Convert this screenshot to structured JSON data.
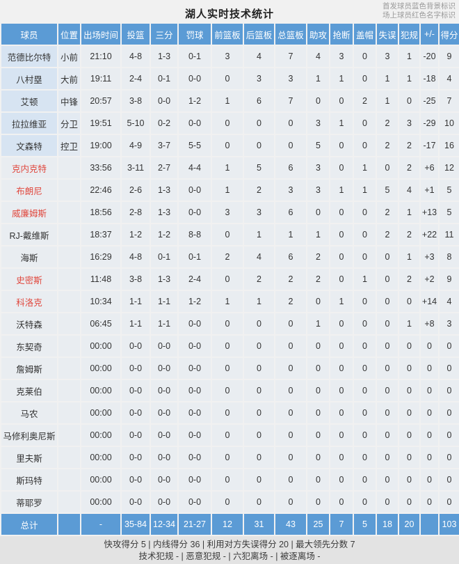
{
  "title": "湖人实时技术统计",
  "legend": {
    "line1": "首发球员蓝色背景标识",
    "line2": "场上球员红色名字标识"
  },
  "table": {
    "columns": [
      "球员",
      "位置",
      "出场时间",
      "投篮",
      "三分",
      "罚球",
      "前篮板",
      "后篮板",
      "总篮板",
      "助攻",
      "抢断",
      "盖帽",
      "失误",
      "犯规",
      "+/-",
      "得分"
    ],
    "rows": [
      {
        "name": "范德比尔特",
        "starter": true,
        "oncourt": false,
        "cells": [
          "小前",
          "21:10",
          "4-8",
          "1-3",
          "0-1",
          "3",
          "4",
          "7",
          "4",
          "3",
          "0",
          "3",
          "1",
          "-20",
          "9"
        ]
      },
      {
        "name": "八村塁",
        "starter": true,
        "oncourt": false,
        "cells": [
          "大前",
          "19:11",
          "2-4",
          "0-1",
          "0-0",
          "0",
          "3",
          "3",
          "1",
          "1",
          "0",
          "1",
          "1",
          "-18",
          "4"
        ]
      },
      {
        "name": "艾顿",
        "starter": true,
        "oncourt": false,
        "cells": [
          "中锋",
          "20:57",
          "3-8",
          "0-0",
          "1-2",
          "1",
          "6",
          "7",
          "0",
          "0",
          "2",
          "1",
          "0",
          "-25",
          "7"
        ]
      },
      {
        "name": "拉拉维亚",
        "starter": true,
        "oncourt": false,
        "cells": [
          "分卫",
          "19:51",
          "5-10",
          "0-2",
          "0-0",
          "0",
          "0",
          "0",
          "3",
          "1",
          "0",
          "2",
          "3",
          "-29",
          "10"
        ]
      },
      {
        "name": "文森特",
        "starter": true,
        "oncourt": false,
        "cells": [
          "控卫",
          "19:00",
          "4-9",
          "3-7",
          "5-5",
          "0",
          "0",
          "0",
          "5",
          "0",
          "0",
          "2",
          "2",
          "-17",
          "16"
        ]
      },
      {
        "name": "克内克特",
        "starter": false,
        "oncourt": true,
        "cells": [
          "",
          "33:56",
          "3-11",
          "2-7",
          "4-4",
          "1",
          "5",
          "6",
          "3",
          "0",
          "1",
          "0",
          "2",
          "+6",
          "12"
        ]
      },
      {
        "name": "布朗尼",
        "starter": false,
        "oncourt": true,
        "cells": [
          "",
          "22:46",
          "2-6",
          "1-3",
          "0-0",
          "1",
          "2",
          "3",
          "3",
          "1",
          "1",
          "5",
          "4",
          "+1",
          "5"
        ]
      },
      {
        "name": "威廉姆斯",
        "starter": false,
        "oncourt": true,
        "cells": [
          "",
          "18:56",
          "2-8",
          "1-3",
          "0-0",
          "3",
          "3",
          "6",
          "0",
          "0",
          "0",
          "2",
          "1",
          "+13",
          "5"
        ]
      },
      {
        "name": "RJ-戴维斯",
        "starter": false,
        "oncourt": false,
        "cells": [
          "",
          "18:37",
          "1-2",
          "1-2",
          "8-8",
          "0",
          "1",
          "1",
          "1",
          "0",
          "0",
          "2",
          "2",
          "+22",
          "11"
        ]
      },
      {
        "name": "海斯",
        "starter": false,
        "oncourt": false,
        "cells": [
          "",
          "16:29",
          "4-8",
          "0-1",
          "0-1",
          "2",
          "4",
          "6",
          "2",
          "0",
          "0",
          "0",
          "1",
          "+3",
          "8"
        ]
      },
      {
        "name": "史密斯",
        "starter": false,
        "oncourt": true,
        "cells": [
          "",
          "11:48",
          "3-8",
          "1-3",
          "2-4",
          "0",
          "2",
          "2",
          "2",
          "0",
          "1",
          "0",
          "2",
          "+2",
          "9"
        ]
      },
      {
        "name": "科洛克",
        "starter": false,
        "oncourt": true,
        "cells": [
          "",
          "10:34",
          "1-1",
          "1-1",
          "1-2",
          "1",
          "1",
          "2",
          "0",
          "1",
          "0",
          "0",
          "0",
          "+14",
          "4"
        ]
      },
      {
        "name": "沃特森",
        "starter": false,
        "oncourt": false,
        "cells": [
          "",
          "06:45",
          "1-1",
          "1-1",
          "0-0",
          "0",
          "0",
          "0",
          "1",
          "0",
          "0",
          "0",
          "1",
          "+8",
          "3"
        ]
      },
      {
        "name": "东契奇",
        "starter": false,
        "oncourt": false,
        "cells": [
          "",
          "00:00",
          "0-0",
          "0-0",
          "0-0",
          "0",
          "0",
          "0",
          "0",
          "0",
          "0",
          "0",
          "0",
          "0",
          "0"
        ]
      },
      {
        "name": "詹姆斯",
        "starter": false,
        "oncourt": false,
        "cells": [
          "",
          "00:00",
          "0-0",
          "0-0",
          "0-0",
          "0",
          "0",
          "0",
          "0",
          "0",
          "0",
          "0",
          "0",
          "0",
          "0"
        ]
      },
      {
        "name": "克莱伯",
        "starter": false,
        "oncourt": false,
        "cells": [
          "",
          "00:00",
          "0-0",
          "0-0",
          "0-0",
          "0",
          "0",
          "0",
          "0",
          "0",
          "0",
          "0",
          "0",
          "0",
          "0"
        ]
      },
      {
        "name": "马农",
        "starter": false,
        "oncourt": false,
        "cells": [
          "",
          "00:00",
          "0-0",
          "0-0",
          "0-0",
          "0",
          "0",
          "0",
          "0",
          "0",
          "0",
          "0",
          "0",
          "0",
          "0"
        ]
      },
      {
        "name": "马修利奥尼斯",
        "starter": false,
        "oncourt": false,
        "cells": [
          "",
          "00:00",
          "0-0",
          "0-0",
          "0-0",
          "0",
          "0",
          "0",
          "0",
          "0",
          "0",
          "0",
          "0",
          "0",
          "0"
        ]
      },
      {
        "name": "里夫斯",
        "starter": false,
        "oncourt": false,
        "cells": [
          "",
          "00:00",
          "0-0",
          "0-0",
          "0-0",
          "0",
          "0",
          "0",
          "0",
          "0",
          "0",
          "0",
          "0",
          "0",
          "0"
        ]
      },
      {
        "name": "斯玛特",
        "starter": false,
        "oncourt": false,
        "cells": [
          "",
          "00:00",
          "0-0",
          "0-0",
          "0-0",
          "0",
          "0",
          "0",
          "0",
          "0",
          "0",
          "0",
          "0",
          "0",
          "0"
        ]
      },
      {
        "name": "蒂耶罗",
        "starter": false,
        "oncourt": false,
        "cells": [
          "",
          "00:00",
          "0-0",
          "0-0",
          "0-0",
          "0",
          "0",
          "0",
          "0",
          "0",
          "0",
          "0",
          "0",
          "0",
          "0"
        ]
      }
    ],
    "total": {
      "name": "总计",
      "cells": [
        "",
        "-",
        "35-84",
        "12-34",
        "21-27",
        "12",
        "31",
        "43",
        "25",
        "7",
        "5",
        "18",
        "20",
        "",
        "103"
      ]
    }
  },
  "footer": {
    "line1": "快攻得分 5 | 内线得分 36 | 利用对方失误得分 20 | 最大领先分数 7",
    "line2": "技术犯规 - | 恶意犯规 - | 六犯离场 - | 被逐离场 -"
  },
  "colors": {
    "header_bg": "#5b9bd5",
    "total_bg": "#5b9bd5",
    "cell_bg": "#e9edf1",
    "starter_name_bg": "#d7e4f2",
    "starter_pos_bg": "#e3eaf2",
    "oncourt_red": "#e0483e"
  }
}
